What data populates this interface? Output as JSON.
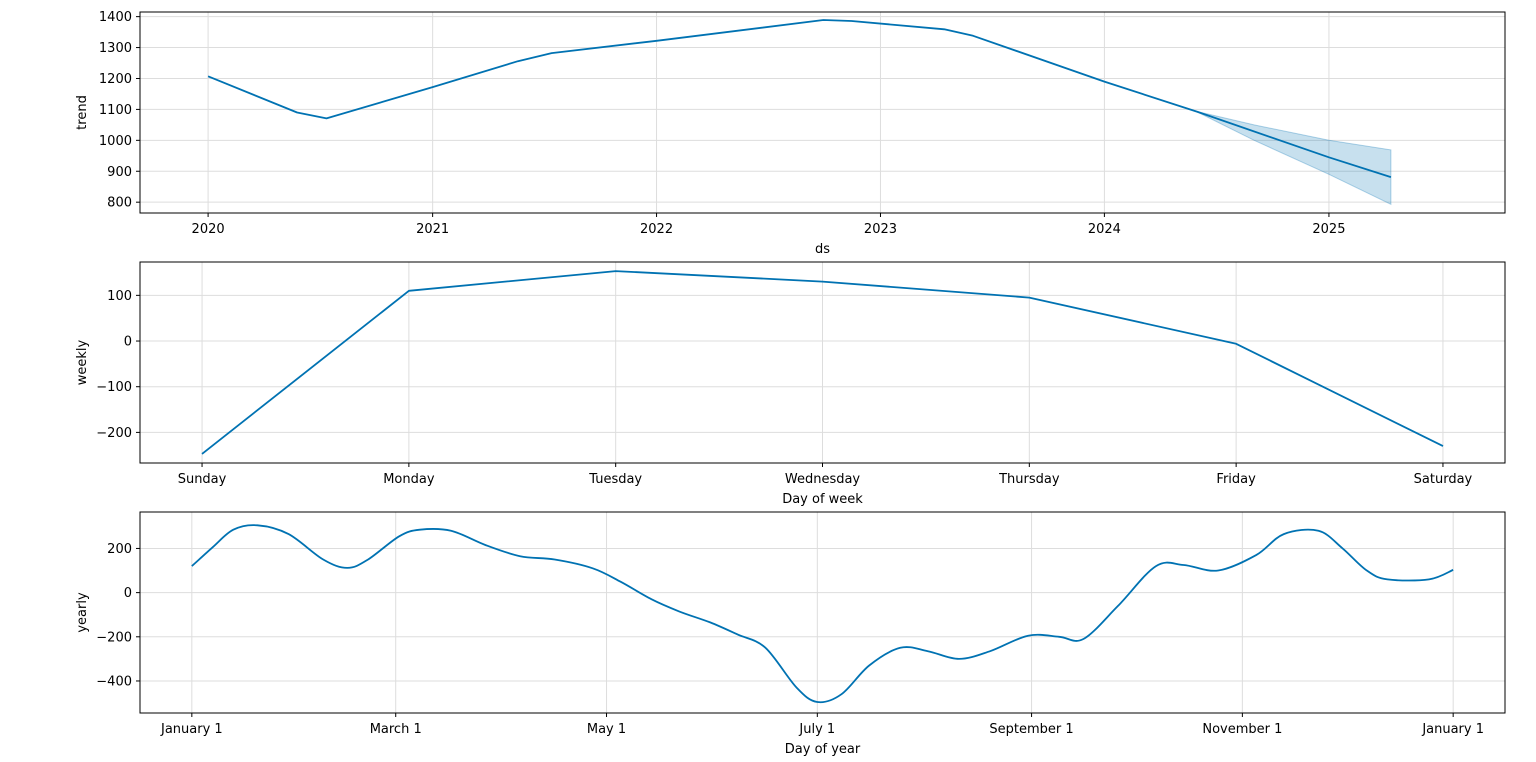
{
  "chart_data": [
    {
      "type": "line",
      "ylabel": "trend",
      "xlabel": "ds",
      "x_axis": "date",
      "xlim": [
        "2019-09-12",
        "2025-10-15"
      ],
      "ylim": [
        765,
        1415
      ],
      "x_ticks": [
        "2020-01-01",
        "2021-01-01",
        "2022-01-01",
        "2023-01-01",
        "2024-01-01",
        "2025-01-01"
      ],
      "x_tick_labels": [
        "2020",
        "2021",
        "2022",
        "2023",
        "2024",
        "2025"
      ],
      "y_ticks": [
        800,
        900,
        1000,
        1100,
        1200,
        1300,
        1400
      ],
      "y_tick_labels": [
        "800",
        "900",
        "1000",
        "1100",
        "1200",
        "1300",
        "1400"
      ],
      "grid": true,
      "color": "#0072b2",
      "band_color": "#0072b2",
      "series": [
        {
          "x": [
            "2020-01-01",
            "2020-05-25",
            "2020-07-12",
            "2021-01-01",
            "2021-05-20",
            "2021-07-14",
            "2022-01-01",
            "2022-09-30",
            "2022-11-15",
            "2023-04-15",
            "2023-06-01",
            "2024-01-01",
            "2024-06-01",
            "2025-01-01",
            "2025-04-12"
          ],
          "y": [
            1207,
            1090,
            1071,
            1172,
            1256,
            1282,
            1322,
            1389,
            1386,
            1359,
            1338,
            1190,
            1092,
            945,
            881
          ]
        }
      ],
      "uncertainty_band": {
        "x": [
          "2024-06-01",
          "2024-09-01",
          "2025-01-01",
          "2025-04-12"
        ],
        "upper": [
          1093,
          1050,
          1000,
          969
        ],
        "lower": [
          1091,
          1000,
          890,
          793
        ]
      }
    },
    {
      "type": "line",
      "ylabel": "weekly",
      "xlabel": "Day of week",
      "categories": [
        "Sunday",
        "Monday",
        "Tuesday",
        "Wednesday",
        "Thursday",
        "Friday",
        "Saturday"
      ],
      "ylim": [
        -267,
        173
      ],
      "y_ticks": [
        -200,
        -100,
        0,
        100
      ],
      "y_tick_labels": [
        "−200",
        "−100",
        "0",
        "100"
      ],
      "grid": true,
      "color": "#0072b2",
      "series": [
        {
          "values": [
            -247,
            110,
            153,
            130,
            95,
            -6,
            -230
          ]
        }
      ]
    },
    {
      "type": "line",
      "ylabel": "yearly",
      "xlabel": "Day of year",
      "x_axis": "day-of-year",
      "xlim": [
        -15,
        380
      ],
      "ylim": [
        -545,
        365
      ],
      "x_ticks": [
        0,
        59,
        120,
        181,
        243,
        304,
        365
      ],
      "x_tick_labels": [
        "January 1",
        "March 1",
        "May 1",
        "July 1",
        "September 1",
        "November 1",
        "January 1"
      ],
      "y_ticks": [
        -400,
        -200,
        0,
        200
      ],
      "y_tick_labels": [
        "−400",
        "−200",
        "0",
        "200"
      ],
      "grid": true,
      "color": "#0072b2",
      "series": [
        {
          "x": [
            0,
            6,
            12,
            19,
            28,
            38,
            45,
            51,
            60,
            66,
            75,
            85,
            95,
            105,
            116,
            124,
            133,
            141,
            150,
            158,
            166,
            175,
            181,
            188,
            196,
            205,
            213,
            222,
            231,
            242,
            251,
            258,
            268,
            279,
            287,
            297,
            308,
            316,
            326,
            333,
            340,
            346,
            358,
            365
          ],
          "y": [
            120,
            205,
            285,
            305,
            265,
            150,
            112,
            150,
            255,
            285,
            280,
            215,
            165,
            150,
            110,
            50,
            -30,
            -85,
            -135,
            -190,
            -250,
            -430,
            -495,
            -460,
            -330,
            -250,
            -265,
            -300,
            -265,
            -195,
            -200,
            -210,
            -60,
            120,
            125,
            100,
            170,
            265,
            280,
            200,
            100,
            60,
            60,
            103
          ]
        }
      ]
    }
  ]
}
